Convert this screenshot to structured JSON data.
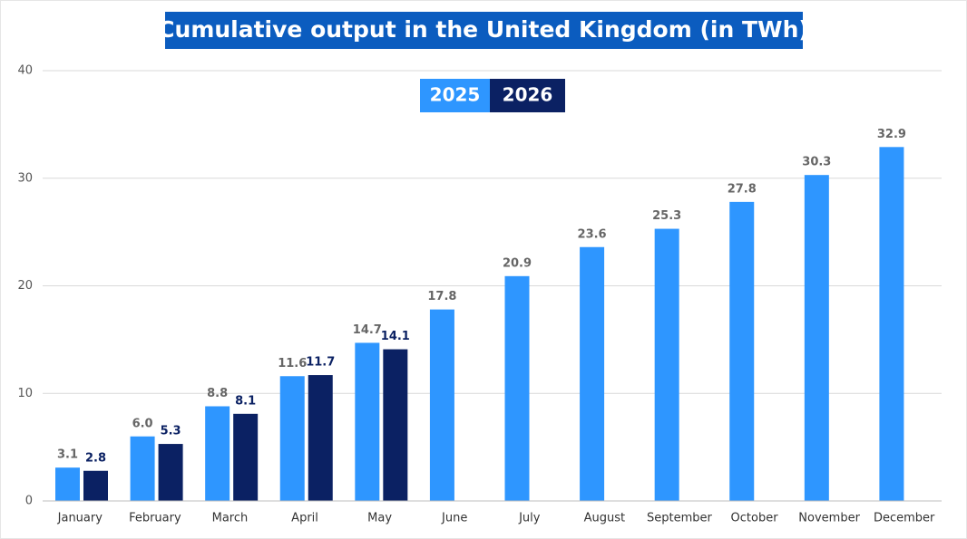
{
  "chart_data": {
    "type": "bar",
    "title": "Cumulative output in the United Kingdom (in TWh)",
    "categories": [
      "January",
      "February",
      "March",
      "April",
      "May",
      "June",
      "July",
      "August",
      "September",
      "October",
      "November",
      "December"
    ],
    "series": [
      {
        "name": "2025",
        "color": "#2e96ff",
        "values": [
          3.1,
          6.0,
          8.8,
          11.6,
          14.7,
          17.8,
          20.9,
          23.6,
          25.3,
          27.8,
          30.3,
          32.9
        ],
        "value_labels": [
          "3.1",
          "6.0",
          "8.8",
          "11.6",
          "14.7",
          "17.8",
          "20.9",
          "23.6",
          "25.3",
          "27.8",
          "30.3",
          "32.9"
        ]
      },
      {
        "name": "2026",
        "color": "#0b2163",
        "values": [
          2.8,
          5.3,
          8.1,
          11.7,
          14.1,
          null,
          null,
          null,
          null,
          null,
          null,
          null
        ],
        "value_labels": [
          "2.8",
          "5.3",
          "8.1",
          "11.7",
          "14.1",
          null,
          null,
          null,
          null,
          null,
          null,
          null
        ]
      }
    ],
    "ylim": [
      0,
      40
    ],
    "yticks": [
      0,
      10,
      20,
      30,
      40
    ],
    "grid": true,
    "legend": "top"
  }
}
